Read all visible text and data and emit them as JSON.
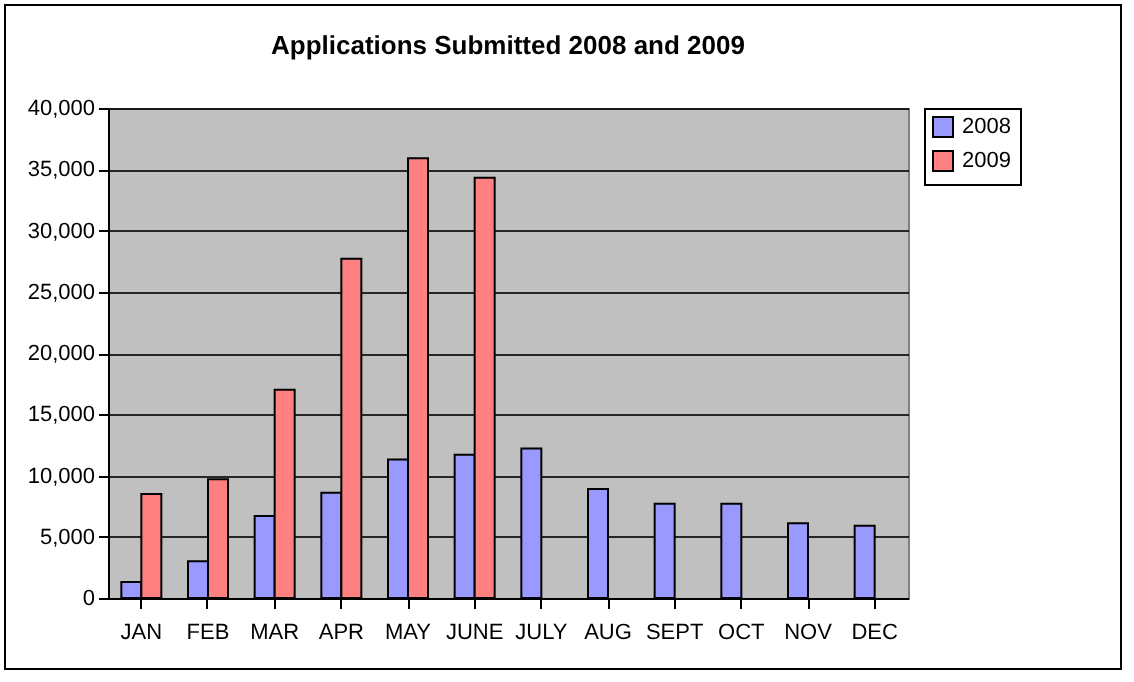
{
  "chart_data": {
    "type": "bar",
    "title": "Applications Submitted 2008 and 2009",
    "categories": [
      "JAN",
      "FEB",
      "MAR",
      "APR",
      "MAY",
      "JUNE",
      "JULY",
      "AUG",
      "SEPT",
      "OCT",
      "NOV",
      "DEC"
    ],
    "series": [
      {
        "name": "2008",
        "color": "#9999ff",
        "values": [
          1300,
          3000,
          6700,
          8600,
          11300,
          11700,
          12200,
          8900,
          7700,
          7700,
          6100,
          5900
        ]
      },
      {
        "name": "2009",
        "color": "#ff8080",
        "values": [
          8500,
          9700,
          17000,
          27700,
          35900,
          34300,
          null,
          null,
          null,
          null,
          null,
          null
        ]
      }
    ],
    "ylim": [
      0,
      40000
    ],
    "yticks": [
      0,
      {
        "value": 5000,
        "label": "5,000"
      },
      {
        "value": 10000,
        "label": "10,000"
      },
      {
        "value": 15000,
        "label": "15,000"
      },
      {
        "value": 20000,
        "label": "20,000"
      },
      {
        "value": 25000,
        "label": "25,000"
      },
      {
        "value": 30000,
        "label": "30,000"
      },
      {
        "value": 35000,
        "label": "35,000"
      },
      {
        "value": 40000,
        "label": "40,000"
      }
    ],
    "grid": "y",
    "legend": "right"
  }
}
